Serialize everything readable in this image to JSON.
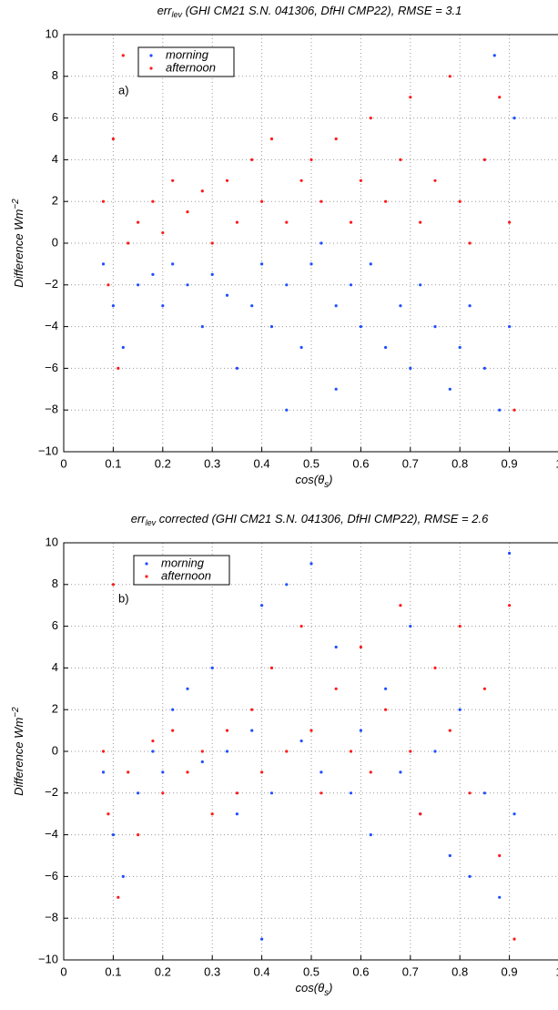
{
  "chart_data": [
    {
      "type": "scatter",
      "title_main": "err",
      "title_sub": "lev",
      "title_rest": " (GHI CM21 S.N. 041306, DfHI CMP22), RMSE = 3.1",
      "panel_label": "a)",
      "ylabel_main": "Difference Wm",
      "ylabel_sup": "−2",
      "xlabel_main": "cos(θ",
      "xlabel_sub": "s",
      "xlabel_end": ")",
      "xlim": [
        0,
        1
      ],
      "ylim": [
        -10,
        10
      ],
      "xticks": [
        0,
        0.1,
        0.2,
        0.3,
        0.4,
        0.5,
        0.6,
        0.7,
        0.8,
        0.9,
        1
      ],
      "yticks": [
        {
          "value": -10,
          "label": "−10"
        },
        {
          "value": -8,
          "label": "−8"
        },
        {
          "value": -6,
          "label": "−6"
        },
        {
          "value": -4,
          "label": "−4"
        },
        {
          "value": -2,
          "label": "−2"
        },
        0,
        2,
        4,
        6,
        8,
        10
      ],
      "grid": true,
      "legend": "upper left",
      "series": [
        {
          "name": "morning",
          "color": "#1f4fff",
          "x": [
            0.08,
            0.1,
            0.12,
            0.15,
            0.18,
            0.2,
            0.22,
            0.25,
            0.28,
            0.3,
            0.33,
            0.35,
            0.38,
            0.4,
            0.42,
            0.45,
            0.48,
            0.5,
            0.52,
            0.55,
            0.58,
            0.6,
            0.62,
            0.65,
            0.68,
            0.7,
            0.72,
            0.75,
            0.78,
            0.8,
            0.82,
            0.85,
            0.88,
            0.9,
            0.91,
            0.87,
            0.55,
            0.45
          ],
          "values": [
            -1,
            -3,
            -5,
            -2,
            -1.5,
            -3,
            -1,
            -2,
            -4,
            -1.5,
            -2.5,
            -6,
            -3,
            -1,
            -4,
            -2,
            -5,
            -1,
            0,
            -3,
            -2,
            -4,
            -1,
            -5,
            -3,
            -6,
            -2,
            -4,
            -7,
            -5,
            -3,
            -6,
            -8,
            -4,
            6,
            9,
            -7,
            -8
          ]
        },
        {
          "name": "afternoon",
          "color": "#ff1a1a",
          "x": [
            0.08,
            0.09,
            0.1,
            0.11,
            0.13,
            0.15,
            0.18,
            0.2,
            0.22,
            0.25,
            0.28,
            0.3,
            0.33,
            0.35,
            0.38,
            0.4,
            0.42,
            0.45,
            0.48,
            0.5,
            0.52,
            0.55,
            0.58,
            0.6,
            0.62,
            0.65,
            0.68,
            0.7,
            0.72,
            0.75,
            0.78,
            0.8,
            0.82,
            0.85,
            0.88,
            0.9,
            0.91,
            0.12
          ],
          "values": [
            2,
            -2,
            5,
            -6,
            0,
            1,
            2,
            0.5,
            3,
            1.5,
            2.5,
            0,
            3,
            1,
            4,
            2,
            5,
            1,
            3,
            4,
            2,
            5,
            1,
            3,
            6,
            2,
            4,
            7,
            1,
            3,
            8,
            2,
            0,
            4,
            7,
            1,
            -8,
            9
          ]
        }
      ]
    },
    {
      "type": "scatter",
      "title_main": "err",
      "title_sub": "lev",
      "title_rest": " corrected (GHI CM21 S.N. 041306, DfHI CMP22), RMSE = 2.6",
      "panel_label": "b)",
      "ylabel_main": "Difference Wm",
      "ylabel_sup": "−2",
      "xlabel_main": "cos(θ",
      "xlabel_sub": "s",
      "xlabel_end": ")",
      "xlim": [
        0,
        1
      ],
      "ylim": [
        -10,
        10
      ],
      "xticks": [
        0,
        0.1,
        0.2,
        0.3,
        0.4,
        0.5,
        0.6,
        0.7,
        0.8,
        0.9,
        1
      ],
      "yticks": [
        {
          "value": -10,
          "label": "−10"
        },
        {
          "value": -8,
          "label": "−8"
        },
        {
          "value": -6,
          "label": "−6"
        },
        {
          "value": -4,
          "label": "−4"
        },
        {
          "value": -2,
          "label": "−2"
        },
        0,
        2,
        4,
        6,
        8,
        10
      ],
      "grid": true,
      "legend": "upper left",
      "series": [
        {
          "name": "morning",
          "color": "#1f4fff",
          "x": [
            0.08,
            0.1,
            0.12,
            0.15,
            0.18,
            0.2,
            0.22,
            0.25,
            0.28,
            0.3,
            0.33,
            0.35,
            0.38,
            0.4,
            0.42,
            0.45,
            0.48,
            0.5,
            0.52,
            0.55,
            0.58,
            0.6,
            0.62,
            0.65,
            0.68,
            0.7,
            0.72,
            0.75,
            0.78,
            0.8,
            0.82,
            0.85,
            0.88,
            0.9,
            0.91,
            0.4
          ],
          "values": [
            -1,
            -4,
            -6,
            -2,
            0,
            -1,
            2,
            3,
            -0.5,
            4,
            0,
            -3,
            1,
            7,
            -2,
            8,
            0.5,
            9,
            -1,
            5,
            -2,
            1,
            -4,
            3,
            -1,
            6,
            -3,
            0,
            -5,
            2,
            -6,
            -2,
            -7,
            9.5,
            -3,
            -9
          ]
        },
        {
          "name": "afternoon",
          "color": "#ff1a1a",
          "x": [
            0.08,
            0.09,
            0.1,
            0.11,
            0.13,
            0.15,
            0.18,
            0.2,
            0.22,
            0.25,
            0.28,
            0.3,
            0.33,
            0.35,
            0.38,
            0.4,
            0.42,
            0.45,
            0.48,
            0.5,
            0.52,
            0.55,
            0.58,
            0.6,
            0.62,
            0.65,
            0.68,
            0.7,
            0.72,
            0.75,
            0.78,
            0.8,
            0.82,
            0.85,
            0.88,
            0.9,
            0.91
          ],
          "values": [
            0,
            -3,
            8,
            -7,
            -1,
            -4,
            0.5,
            -2,
            1,
            -1,
            0,
            -3,
            1,
            -2,
            2,
            -1,
            4,
            0,
            6,
            1,
            -2,
            3,
            0,
            5,
            -1,
            2,
            7,
            0,
            -3,
            4,
            1,
            6,
            -2,
            3,
            -5,
            7,
            -9
          ]
        }
      ]
    }
  ]
}
